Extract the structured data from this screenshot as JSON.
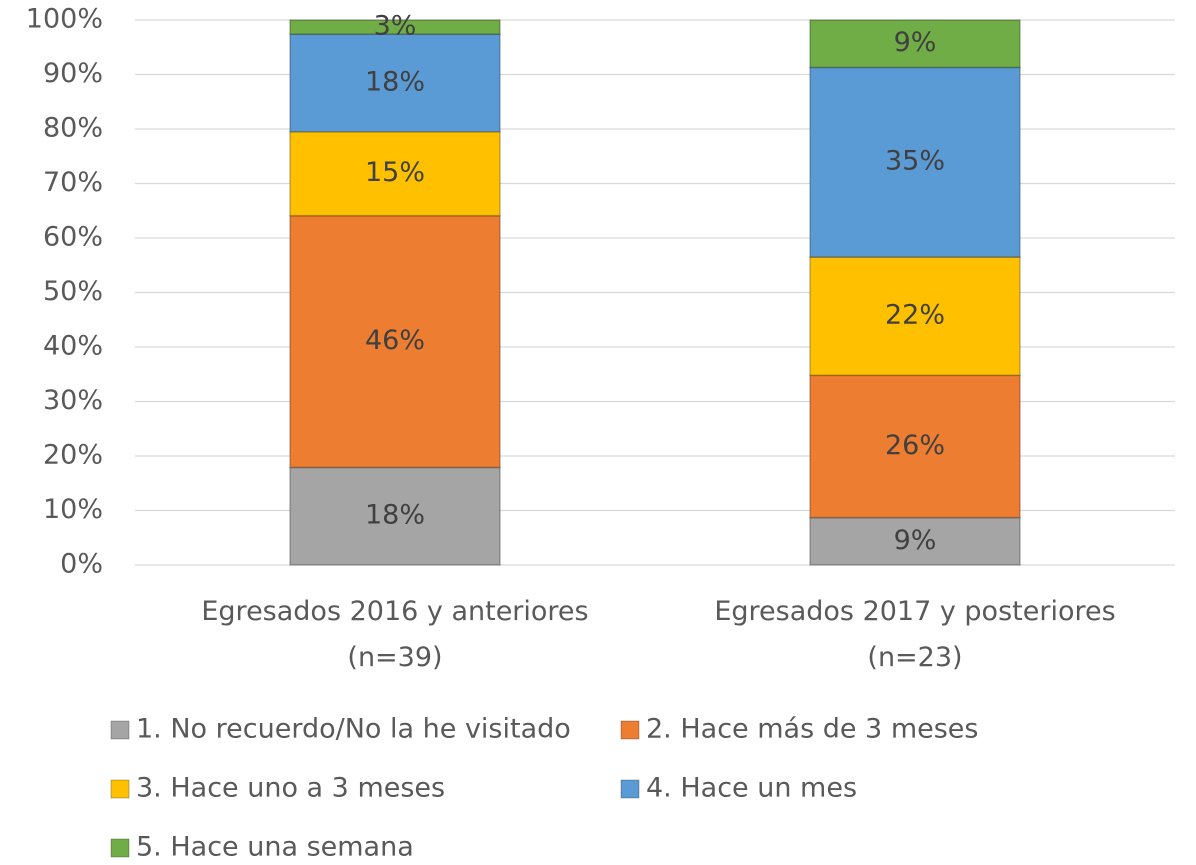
{
  "chart_data": {
    "type": "stacked_bar",
    "categories": [
      "Egresados 2016 y anteriores\n(n=39)",
      "Egresados 2017 y posteriores\n(n=23)"
    ],
    "series": [
      {
        "name": "1. No recuerdo/No la he visitado",
        "color": "#a5a5a5",
        "values": [
          17.9,
          8.7
        ],
        "value_labels": [
          "18%",
          "9%"
        ]
      },
      {
        "name": "2. Hace más de 3 meses",
        "color": "#ed7d31",
        "values": [
          46.2,
          26.1
        ],
        "value_labels": [
          "46%",
          "26%"
        ]
      },
      {
        "name": "3. Hace uno a 3 meses",
        "color": "#ffc000",
        "values": [
          15.4,
          21.7
        ],
        "value_labels": [
          "15%",
          "22%"
        ]
      },
      {
        "name": "4. Hace un mes",
        "color": "#5b9bd5",
        "values": [
          17.9,
          34.8
        ],
        "value_labels": [
          "18%",
          "35%"
        ]
      },
      {
        "name": "5. Hace una semana",
        "color": "#70ad47",
        "values": [
          2.6,
          8.7
        ],
        "value_labels": [
          "3%",
          "9%"
        ]
      }
    ],
    "ylim": [
      0,
      100
    ],
    "yticks": [
      {
        "value": 0,
        "label": "0%"
      },
      {
        "value": 10,
        "label": "10%"
      },
      {
        "value": 20,
        "label": "20%"
      },
      {
        "value": 30,
        "label": "30%"
      },
      {
        "value": 40,
        "label": "40%"
      },
      {
        "value": 50,
        "label": "50%"
      },
      {
        "value": 60,
        "label": "60%"
      },
      {
        "value": 70,
        "label": "70%"
      },
      {
        "value": 80,
        "label": "80%"
      },
      {
        "value": 90,
        "label": "90%"
      },
      {
        "value": 100,
        "label": "100%"
      }
    ],
    "grid": true,
    "legend": "bottom"
  }
}
